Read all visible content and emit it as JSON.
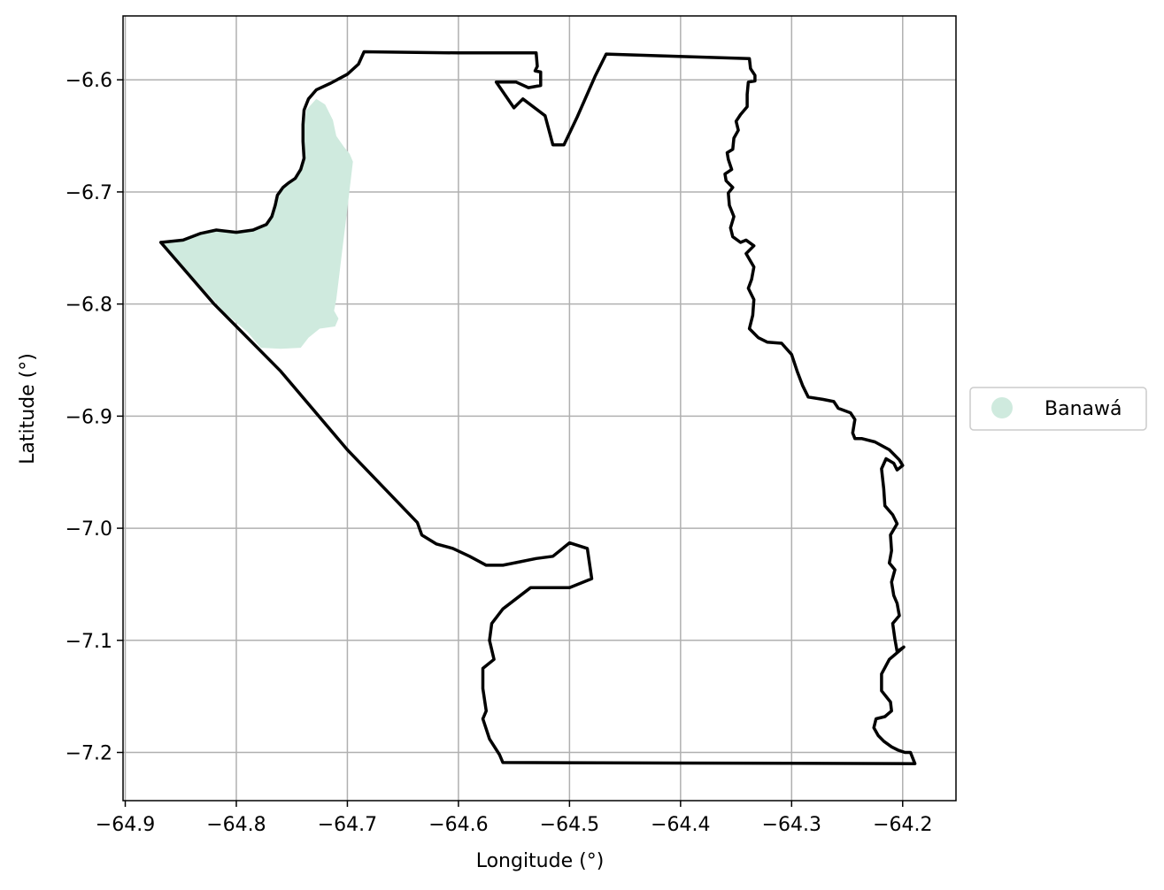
{
  "chart_data": {
    "type": "map",
    "xlabel": "Longitude (°)",
    "ylabel": "Latitude (°)",
    "xlim": [
      -64.902,
      -64.152
    ],
    "ylim": [
      -7.243,
      -6.543
    ],
    "xticks": [
      -64.9,
      -64.8,
      -64.7,
      -64.6,
      -64.5,
      -64.4,
      -64.3,
      -64.2
    ],
    "yticks": [
      -6.6,
      -6.7,
      -6.8,
      -6.9,
      -7.0,
      -7.1,
      -7.2
    ],
    "xtick_labels": [
      "−64.9",
      "−64.8",
      "−64.7",
      "−64.6",
      "−64.5",
      "−64.4",
      "−64.3",
      "−64.2"
    ],
    "ytick_labels": [
      "−6.6",
      "−6.7",
      "−6.8",
      "−6.9",
      "−7.0",
      "−7.1",
      "−7.2"
    ],
    "grid": true,
    "legend_position": "right",
    "layers": [
      {
        "name": "Banawá",
        "kind": "filled-polygon",
        "color": "#cfeade",
        "coords": [
          [
            -64.868,
            -6.745
          ],
          [
            -64.848,
            -6.743
          ],
          [
            -64.832,
            -6.737
          ],
          [
            -64.815,
            -6.734
          ],
          [
            -64.8,
            -6.736
          ],
          [
            -64.785,
            -6.734
          ],
          [
            -64.773,
            -6.728
          ],
          [
            -64.768,
            -6.722
          ],
          [
            -64.763,
            -6.706
          ],
          [
            -64.755,
            -6.694
          ],
          [
            -64.747,
            -6.69
          ],
          [
            -64.74,
            -6.677
          ],
          [
            -64.74,
            -6.65
          ],
          [
            -64.737,
            -6.627
          ],
          [
            -64.728,
            -6.617
          ],
          [
            -64.72,
            -6.622
          ],
          [
            -64.713,
            -6.636
          ],
          [
            -64.71,
            -6.65
          ],
          [
            -64.703,
            -6.66
          ],
          [
            -64.698,
            -6.666
          ],
          [
            -64.695,
            -6.673
          ],
          [
            -64.7,
            -6.715
          ],
          [
            -64.705,
            -6.755
          ],
          [
            -64.708,
            -6.78
          ],
          [
            -64.71,
            -6.796
          ],
          [
            -64.712,
            -6.806
          ],
          [
            -64.708,
            -6.813
          ],
          [
            -64.711,
            -6.82
          ],
          [
            -64.725,
            -6.822
          ],
          [
            -64.735,
            -6.83
          ],
          [
            -64.742,
            -6.839
          ],
          [
            -64.76,
            -6.84
          ],
          [
            -64.778,
            -6.839
          ],
          [
            -64.79,
            -6.825
          ],
          [
            -64.81,
            -6.808
          ],
          [
            -64.84,
            -6.775
          ]
        ]
      },
      {
        "name": "",
        "kind": "boundary",
        "color": "#000000",
        "coords": [
          [
            -64.868,
            -6.745
          ],
          [
            -64.848,
            -6.743
          ],
          [
            -64.832,
            -6.737
          ],
          [
            -64.818,
            -6.734
          ],
          [
            -64.8,
            -6.736
          ],
          [
            -64.785,
            -6.734
          ],
          [
            -64.773,
            -6.729
          ],
          [
            -64.768,
            -6.722
          ],
          [
            -64.765,
            -6.712
          ],
          [
            -64.763,
            -6.703
          ],
          [
            -64.758,
            -6.696
          ],
          [
            -64.753,
            -6.692
          ],
          [
            -64.747,
            -6.688
          ],
          [
            -64.742,
            -6.68
          ],
          [
            -64.739,
            -6.67
          ],
          [
            -64.74,
            -6.655
          ],
          [
            -64.74,
            -6.64
          ],
          [
            -64.739,
            -6.627
          ],
          [
            -64.735,
            -6.617
          ],
          [
            -64.728,
            -6.609
          ],
          [
            -64.715,
            -6.603
          ],
          [
            -64.7,
            -6.595
          ],
          [
            -64.69,
            -6.586
          ],
          [
            -64.685,
            -6.575
          ],
          [
            -64.6,
            -6.576
          ],
          [
            -64.53,
            -6.576
          ],
          [
            -64.529,
            -6.588
          ],
          [
            -64.531,
            -6.592
          ],
          [
            -64.526,
            -6.593
          ],
          [
            -64.526,
            -6.605
          ],
          [
            -64.537,
            -6.607
          ],
          [
            -64.548,
            -6.602
          ],
          [
            -64.566,
            -6.602
          ],
          [
            -64.55,
            -6.625
          ],
          [
            -64.542,
            -6.617
          ],
          [
            -64.522,
            -6.632
          ],
          [
            -64.515,
            -6.658
          ],
          [
            -64.505,
            -6.658
          ],
          [
            -64.493,
            -6.633
          ],
          [
            -64.477,
            -6.597
          ],
          [
            -64.467,
            -6.577
          ],
          [
            -64.405,
            -6.579
          ],
          [
            -64.338,
            -6.581
          ],
          [
            -64.337,
            -6.59
          ],
          [
            -64.333,
            -6.596
          ],
          [
            -64.333,
            -6.601
          ],
          [
            -64.339,
            -6.602
          ],
          [
            -64.34,
            -6.613
          ],
          [
            -64.34,
            -6.624
          ],
          [
            -64.346,
            -6.631
          ],
          [
            -64.35,
            -6.637
          ],
          [
            -64.348,
            -6.645
          ],
          [
            -64.352,
            -6.652
          ],
          [
            -64.353,
            -6.662
          ],
          [
            -64.358,
            -6.665
          ],
          [
            -64.357,
            -6.671
          ],
          [
            -64.354,
            -6.68
          ],
          [
            -64.36,
            -6.684
          ],
          [
            -64.359,
            -6.69
          ],
          [
            -64.353,
            -6.696
          ],
          [
            -64.357,
            -6.701
          ],
          [
            -64.356,
            -6.712
          ],
          [
            -64.352,
            -6.722
          ],
          [
            -64.355,
            -6.732
          ],
          [
            -64.353,
            -6.74
          ],
          [
            -64.346,
            -6.745
          ],
          [
            -64.341,
            -6.743
          ],
          [
            -64.334,
            -6.748
          ],
          [
            -64.341,
            -6.755
          ],
          [
            -64.338,
            -6.76
          ],
          [
            -64.334,
            -6.767
          ],
          [
            -64.336,
            -6.778
          ],
          [
            -64.339,
            -6.786
          ],
          [
            -64.334,
            -6.796
          ],
          [
            -64.335,
            -6.81
          ],
          [
            -64.338,
            -6.822
          ],
          [
            -64.33,
            -6.83
          ],
          [
            -64.322,
            -6.834
          ],
          [
            -64.309,
            -6.835
          ],
          [
            -64.3,
            -6.845
          ],
          [
            -64.295,
            -6.86
          ],
          [
            -64.29,
            -6.873
          ],
          [
            -64.285,
            -6.883
          ],
          [
            -64.272,
            -6.885
          ],
          [
            -64.262,
            -6.887
          ],
          [
            -64.258,
            -6.893
          ],
          [
            -64.247,
            -6.897
          ],
          [
            -64.243,
            -6.903
          ],
          [
            -64.245,
            -6.915
          ],
          [
            -64.243,
            -6.92
          ],
          [
            -64.237,
            -6.92
          ],
          [
            -64.225,
            -6.923
          ],
          [
            -64.212,
            -6.93
          ],
          [
            -64.203,
            -6.939
          ],
          [
            -64.2,
            -6.944
          ],
          [
            -64.205,
            -6.948
          ],
          [
            -64.208,
            -6.942
          ],
          [
            -64.215,
            -6.938
          ],
          [
            -64.219,
            -6.947
          ],
          [
            -64.217,
            -6.965
          ],
          [
            -64.216,
            -6.98
          ],
          [
            -64.209,
            -6.988
          ],
          [
            -64.205,
            -6.996
          ],
          [
            -64.211,
            -7.006
          ],
          [
            -64.21,
            -7.02
          ],
          [
            -64.212,
            -7.031
          ],
          [
            -64.207,
            -7.037
          ],
          [
            -64.21,
            -7.048
          ],
          [
            -64.208,
            -7.06
          ],
          [
            -64.205,
            -7.067
          ],
          [
            -64.203,
            -7.078
          ],
          [
            -64.209,
            -7.085
          ],
          [
            -64.207,
            -7.099
          ],
          [
            -64.205,
            -7.11
          ],
          [
            -64.199,
            -7.106
          ],
          [
            -64.212,
            -7.117
          ],
          [
            -64.219,
            -7.13
          ],
          [
            -64.219,
            -7.145
          ],
          [
            -64.211,
            -7.155
          ],
          [
            -64.21,
            -7.163
          ],
          [
            -64.216,
            -7.168
          ],
          [
            -64.224,
            -7.17
          ],
          [
            -64.226,
            -7.178
          ],
          [
            -64.222,
            -7.185
          ],
          [
            -64.217,
            -7.19
          ],
          [
            -64.21,
            -7.195
          ],
          [
            -64.204,
            -7.198
          ],
          [
            -64.198,
            -7.2
          ],
          [
            -64.193,
            -7.2
          ],
          [
            -64.189,
            -7.21
          ],
          [
            -64.56,
            -7.209
          ],
          [
            -64.563,
            -7.202
          ],
          [
            -64.572,
            -7.188
          ],
          [
            -64.578,
            -7.17
          ],
          [
            -64.575,
            -7.163
          ],
          [
            -64.578,
            -7.143
          ],
          [
            -64.578,
            -7.125
          ],
          [
            -64.568,
            -7.117
          ],
          [
            -64.572,
            -7.1
          ],
          [
            -64.57,
            -7.085
          ],
          [
            -64.56,
            -7.072
          ],
          [
            -64.535,
            -7.053
          ],
          [
            -64.5,
            -7.053
          ],
          [
            -64.48,
            -7.045
          ],
          [
            -64.484,
            -7.018
          ],
          [
            -64.5,
            -7.013
          ],
          [
            -64.515,
            -7.025
          ],
          [
            -64.53,
            -7.027
          ],
          [
            -64.545,
            -7.03
          ],
          [
            -64.56,
            -7.033
          ],
          [
            -64.575,
            -7.033
          ],
          [
            -64.59,
            -7.025
          ],
          [
            -64.605,
            -7.018
          ],
          [
            -64.62,
            -7.014
          ],
          [
            -64.633,
            -7.006
          ],
          [
            -64.637,
            -6.995
          ],
          [
            -64.7,
            -6.93
          ],
          [
            -64.76,
            -6.86
          ],
          [
            -64.82,
            -6.8
          ],
          [
            -64.868,
            -6.745
          ]
        ]
      }
    ],
    "legend": [
      {
        "label": "Banawá",
        "color": "#cfeade",
        "marker": "circle"
      }
    ]
  }
}
